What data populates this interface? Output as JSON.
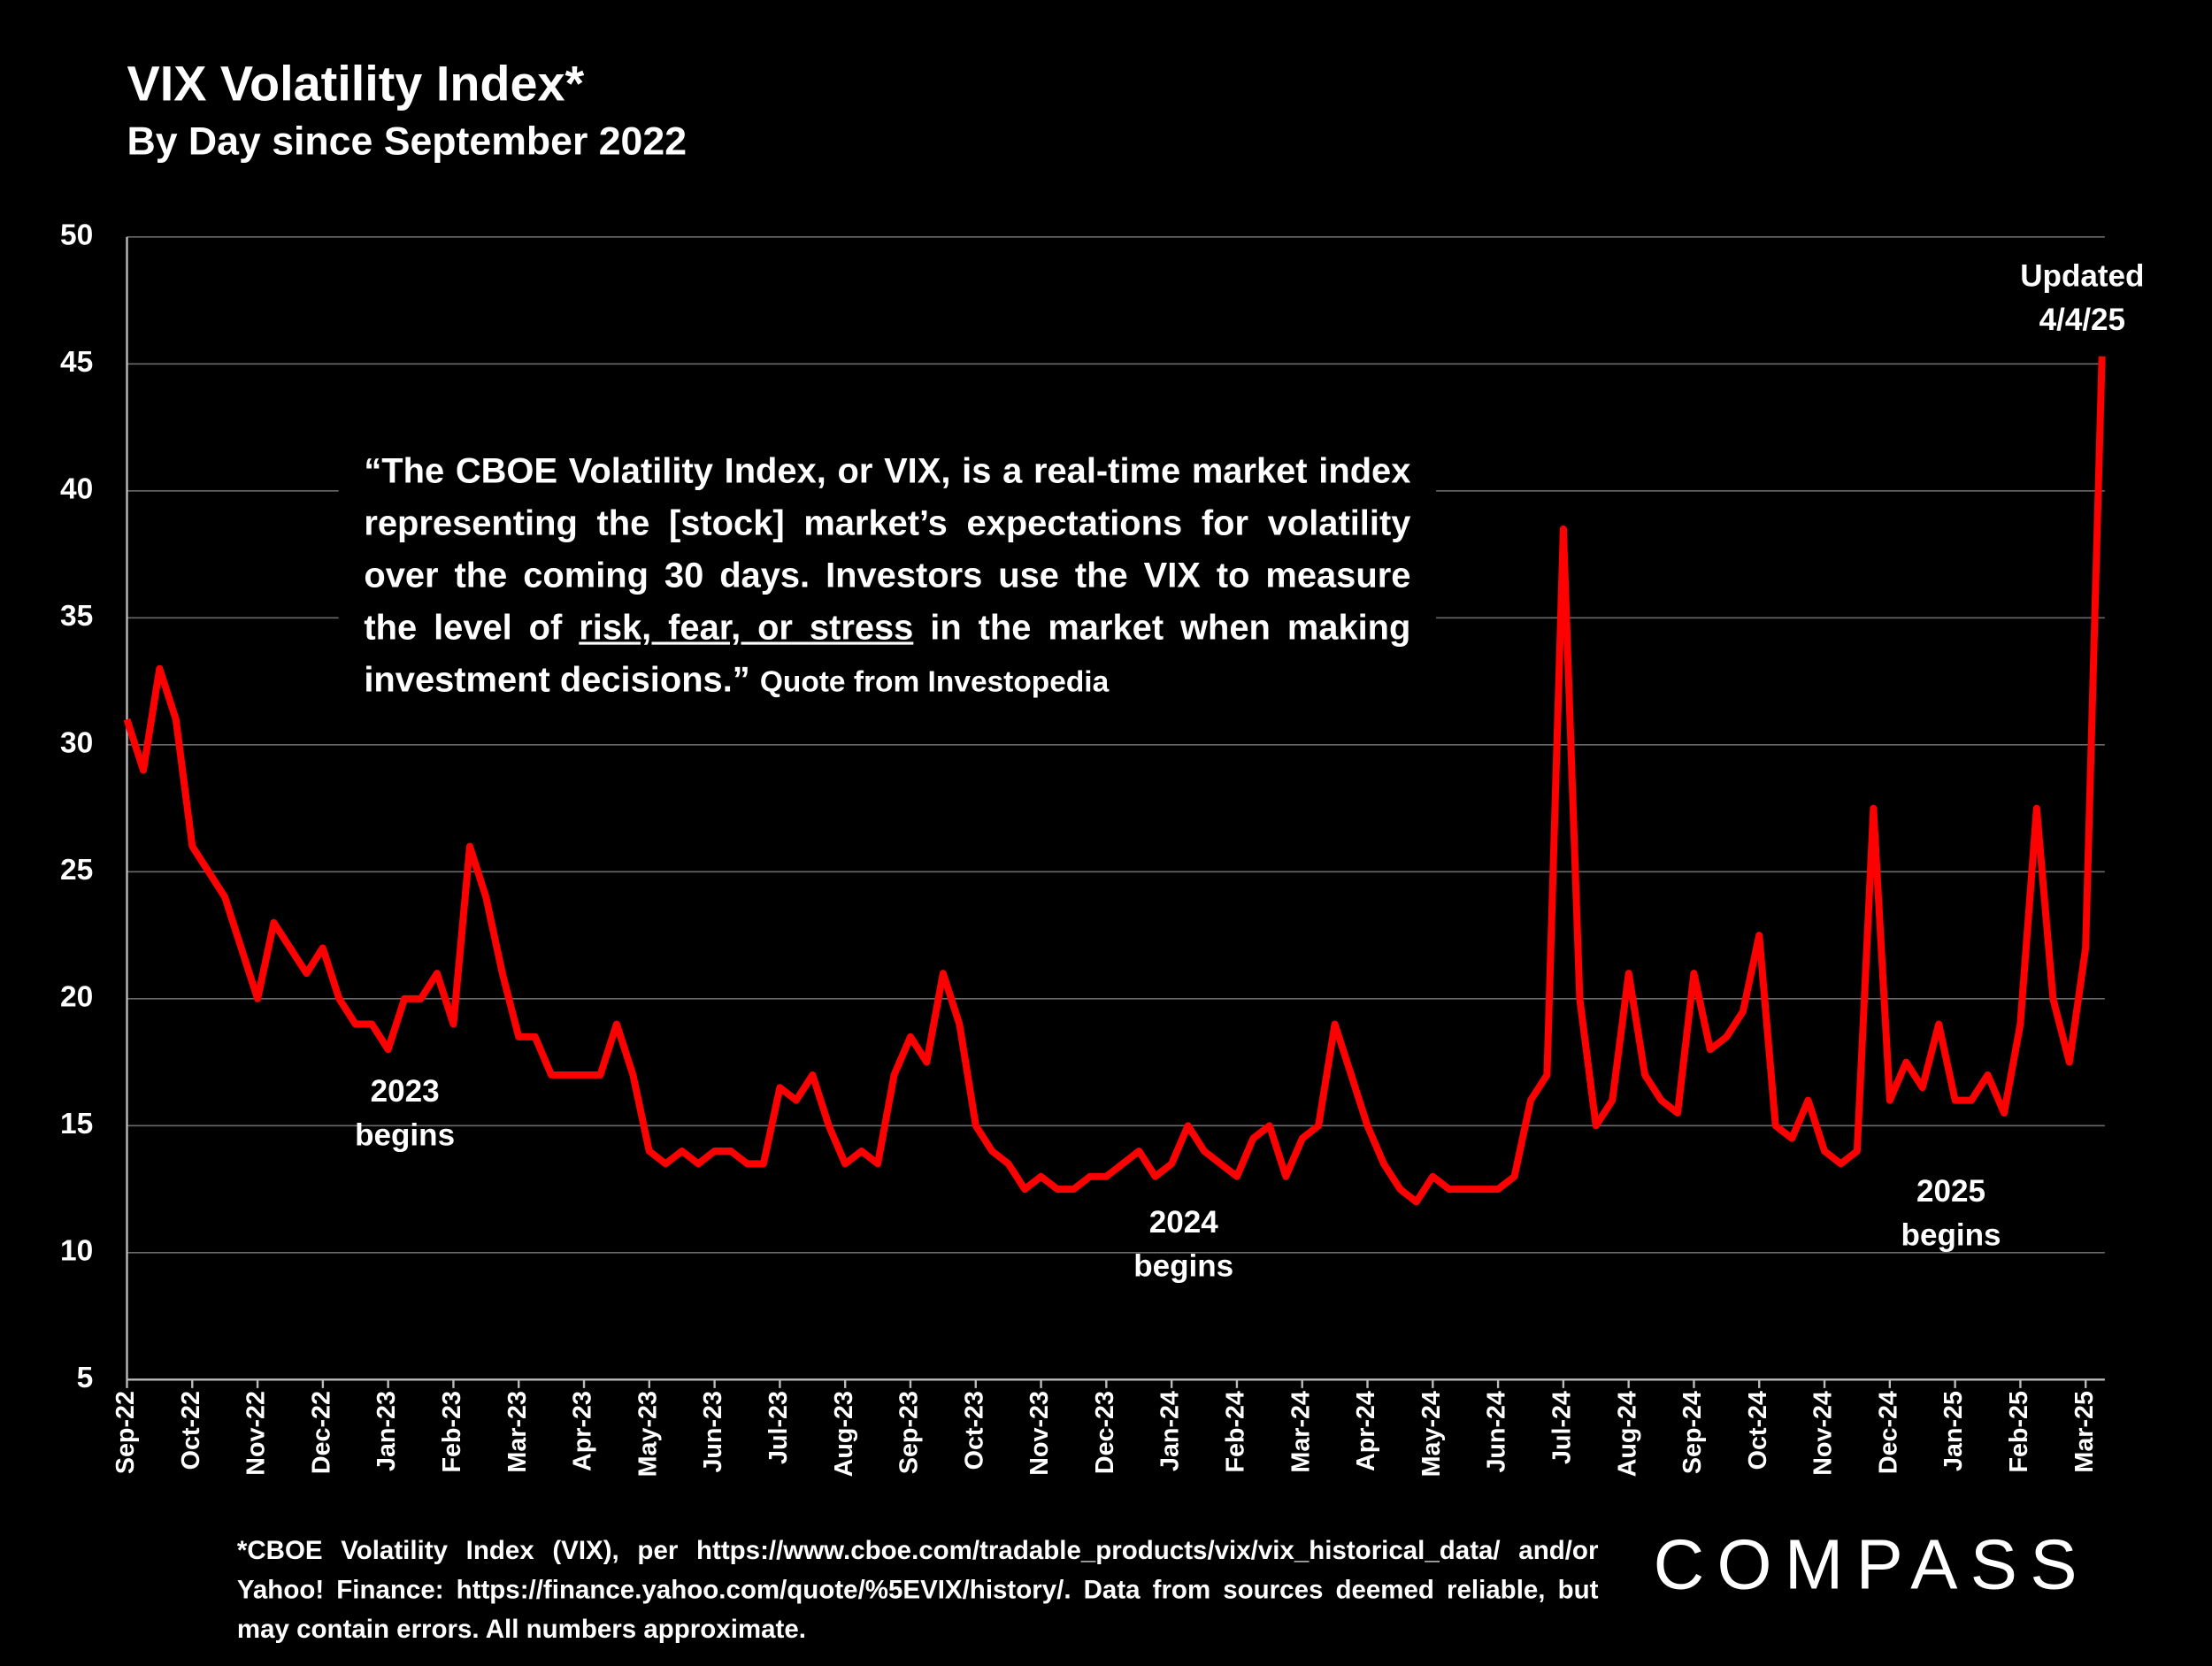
{
  "chart_data": {
    "type": "line",
    "title": "VIX Volatility Index*",
    "subtitle": "By Day since September 2022",
    "categories": [
      "Sep-22",
      null,
      null,
      null,
      "Oct-22",
      null,
      null,
      null,
      "Nov-22",
      null,
      null,
      null,
      "Dec-22",
      null,
      null,
      null,
      "Jan-23",
      null,
      null,
      null,
      "Feb-23",
      null,
      null,
      null,
      "Mar-23",
      null,
      null,
      null,
      "Apr-23",
      null,
      null,
      null,
      "May-23",
      null,
      null,
      null,
      "Jun-23",
      null,
      null,
      null,
      "Jul-23",
      null,
      null,
      null,
      "Aug-23",
      null,
      null,
      null,
      "Sep-23",
      null,
      null,
      null,
      "Oct-23",
      null,
      null,
      null,
      "Nov-23",
      null,
      null,
      null,
      "Dec-23",
      null,
      null,
      null,
      "Jan-24",
      null,
      null,
      null,
      "Feb-24",
      null,
      null,
      null,
      "Mar-24",
      null,
      null,
      null,
      "Apr-24",
      null,
      null,
      null,
      "May-24",
      null,
      null,
      null,
      "Jun-24",
      null,
      null,
      null,
      "Jul-24",
      null,
      null,
      null,
      "Aug-24",
      null,
      null,
      null,
      "Sep-24",
      null,
      null,
      null,
      "Oct-24",
      null,
      null,
      null,
      "Nov-24",
      null,
      null,
      null,
      "Dec-24",
      null,
      null,
      null,
      "Jan-25",
      null,
      null,
      null,
      "Feb-25",
      null,
      null,
      null,
      "Mar-25",
      null
    ],
    "series": [
      {
        "name": "VIX",
        "color": "#ff0000",
        "values": [
          31,
          29,
          33,
          31,
          26,
          25,
          24,
          22,
          20,
          23,
          22,
          21,
          22,
          20,
          19,
          19,
          18,
          20,
          20,
          21,
          19,
          26,
          24,
          21,
          18.5,
          18.5,
          17,
          17,
          17,
          17,
          19,
          17,
          14,
          13.5,
          14,
          13.5,
          14,
          14,
          13.5,
          13.5,
          16.5,
          16,
          17,
          15,
          13.5,
          14,
          13.5,
          17,
          18.5,
          17.5,
          21,
          19,
          15,
          14,
          13.5,
          12.5,
          13,
          12.5,
          12.5,
          13,
          13,
          13.5,
          14,
          13,
          13.5,
          15,
          14,
          13.5,
          13,
          14.5,
          15,
          13,
          14.5,
          15,
          19,
          17,
          15,
          13.5,
          12.5,
          12,
          13,
          12.5,
          12.5,
          12.5,
          12.5,
          13,
          16,
          17,
          38.5,
          20,
          15,
          16,
          21,
          17,
          16,
          15.5,
          21,
          18,
          18.5,
          19.5,
          22.5,
          15,
          14.5,
          16,
          14,
          13.5,
          14,
          27.5,
          16,
          17.5,
          16.5,
          19,
          16,
          16,
          17,
          15.5,
          19,
          27.5,
          20,
          17.5,
          22,
          45.3
        ]
      }
    ],
    "ylim": [
      5,
      50
    ],
    "yticks": [
      5,
      10,
      15,
      20,
      25,
      30,
      35,
      40,
      45,
      50
    ],
    "grid": true,
    "annotations": [
      "2023",
      "begins",
      "2024",
      "begins",
      "2025",
      "begins",
      "Updated",
      "4/4/25"
    ],
    "quote": {
      "before": "“The CBOE Volatility Index, or VIX, is a real-time market index representing the [stock] market’s expectations for volatility over the coming 30 days. Investors use the VIX to measure the level of ",
      "underlined": "risk, fear, or stress",
      "after": " in the market when making investment decisions.”",
      "source": "Quote from Investopedia"
    },
    "footnote": "*CBOE Volatility Index (VIX), per https://www.cboe.com/tradable_products/vix/vix_historical_data/ and/or Yahoo! Finance: https://finance.yahoo.com/quote/%5EVIX/history/. Data from sources deemed reliable, but may contain errors. All numbers approximate.",
    "logo": "COMPASS"
  }
}
